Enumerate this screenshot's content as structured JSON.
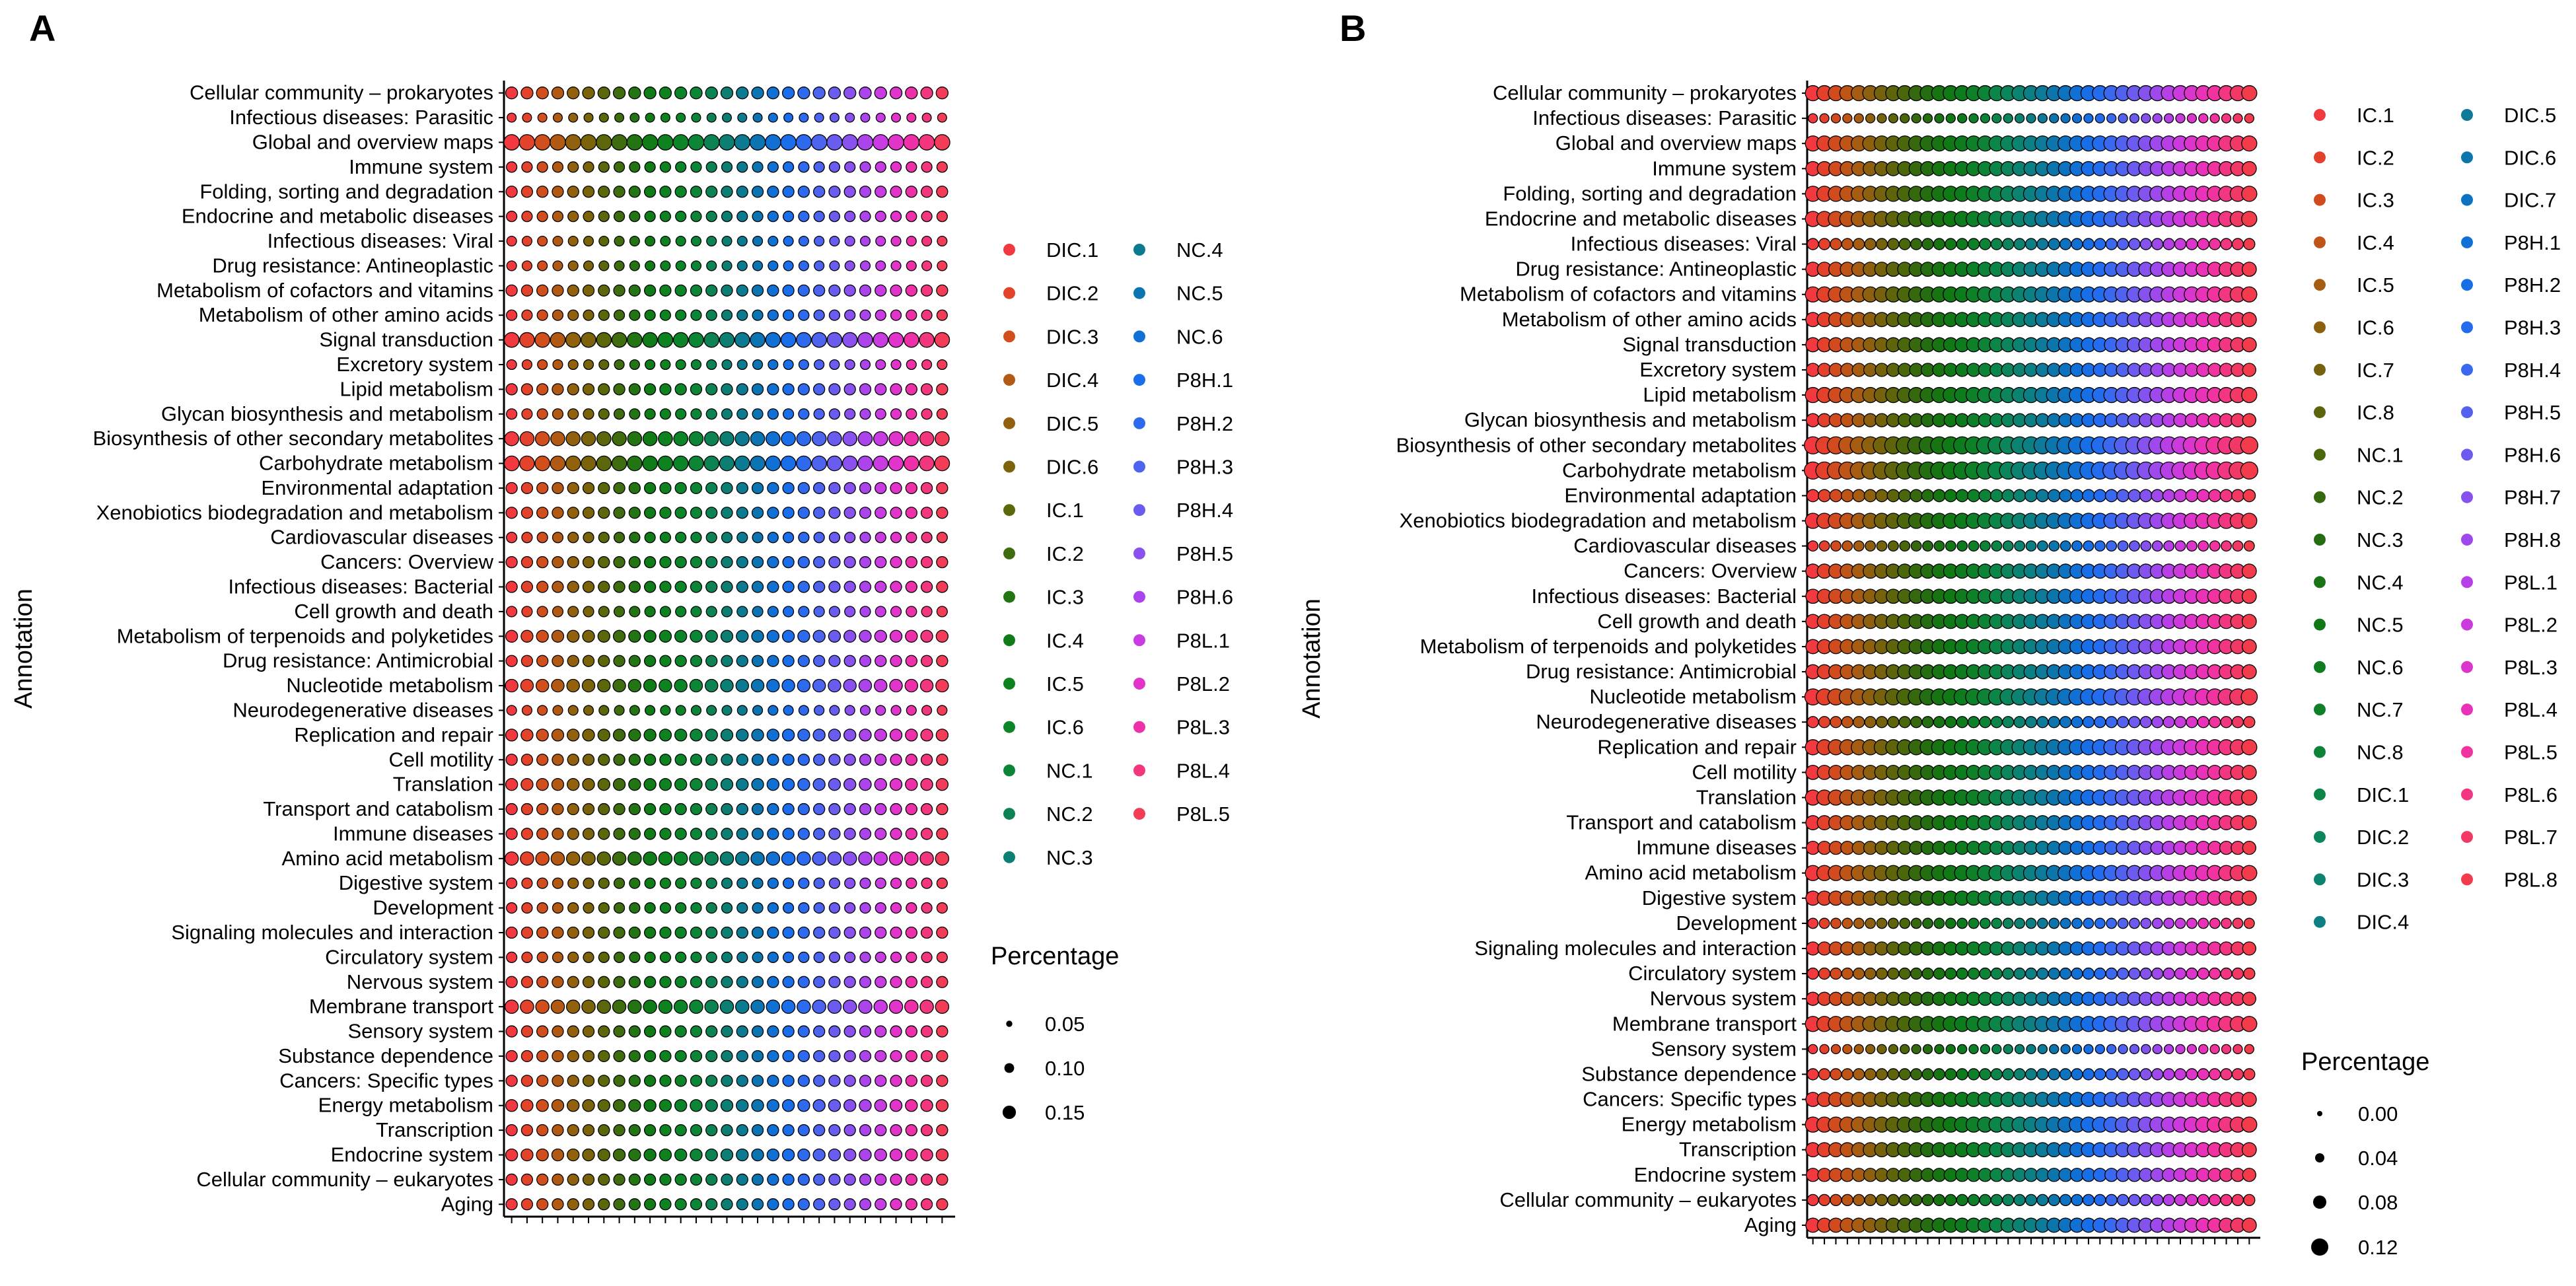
{
  "figure": {
    "panel_a_letter": "A",
    "panel_b_letter": "B"
  },
  "chart_data": [
    {
      "type": "scatter",
      "id": "panelA",
      "title": "",
      "ylabel": "Annotation",
      "xlabel": "",
      "categories": [
        "Cellular community – prokaryotes",
        "Infectious diseases: Parasitic",
        "Global and overview maps",
        "Immune system",
        "Folding, sorting and degradation",
        "Endocrine and metabolic diseases",
        "Infectious diseases: Viral",
        "Drug resistance: Antineoplastic",
        "Metabolism of cofactors and vitamins",
        "Metabolism of other amino acids",
        "Signal transduction",
        "Excretory system",
        "Lipid metabolism",
        "Glycan biosynthesis and metabolism",
        "Biosynthesis of other secondary metabolites",
        "Carbohydrate metabolism",
        "Environmental adaptation",
        "Xenobiotics biodegradation and metabolism",
        "Cardiovascular diseases",
        "Cancers: Overview",
        "Infectious diseases: Bacterial",
        "Cell growth and death",
        "Metabolism of terpenoids and polyketides",
        "Drug resistance: Antimicrobial",
        "Nucleotide metabolism",
        "Neurodegenerative diseases",
        "Replication and repair",
        "Cell motility",
        "Translation",
        "Transport and catabolism",
        "Immune diseases",
        "Amino acid metabolism",
        "Digestive system",
        "Development",
        "Signaling molecules and interaction",
        "Circulatory system",
        "Nervous system",
        "Membrane transport",
        "Sensory system",
        "Substance dependence",
        "Cancers: Specific types",
        "Energy metabolism",
        "Transcription",
        "Endocrine system",
        "Cellular community – eukaryotes",
        "Aging"
      ],
      "samples": [
        "DIC.1",
        "DIC.2",
        "DIC.3",
        "DIC.4",
        "DIC.5",
        "DIC.6",
        "IC.1",
        "IC.2",
        "IC.3",
        "IC.4",
        "IC.5",
        "IC.6",
        "NC.1",
        "NC.2",
        "NC.3",
        "NC.4",
        "NC.5",
        "NC.6",
        "P8H.1",
        "P8H.2",
        "P8H.3",
        "P8H.4",
        "P8H.5",
        "P8H.6",
        "P8L.1",
        "P8L.2",
        "P8L.3",
        "P8L.4",
        "P8L.5"
      ],
      "sample_colors": [
        "#F2393F",
        "#E2432A",
        "#D04F1C",
        "#B25A14",
        "#92610E",
        "#7A630A",
        "#5C660A",
        "#3E6C0E",
        "#237412",
        "#0F7C18",
        "#0D821E",
        "#0C8528",
        "#0C8536",
        "#0D8253",
        "#0C7F72",
        "#0C7A90",
        "#0C74B0",
        "#1170D4",
        "#1A6EEA",
        "#2E6AEE",
        "#4C64EE",
        "#6A5CEE",
        "#8A51EE",
        "#AB44EA",
        "#C83CE2",
        "#E034CA",
        "#EE31A8",
        "#F2377E",
        "#F23C58"
      ],
      "values_row_profile": [
        0.13,
        0.09,
        0.18,
        0.11,
        0.12,
        0.11,
        0.1,
        0.1,
        0.12,
        0.11,
        0.17,
        0.1,
        0.12,
        0.11,
        0.16,
        0.17,
        0.12,
        0.12,
        0.11,
        0.12,
        0.12,
        0.11,
        0.13,
        0.12,
        0.14,
        0.1,
        0.13,
        0.12,
        0.13,
        0.12,
        0.12,
        0.15,
        0.11,
        0.11,
        0.12,
        0.11,
        0.12,
        0.15,
        0.12,
        0.12,
        0.12,
        0.13,
        0.12,
        0.13,
        0.12,
        0.12
      ],
      "legend": {
        "title": "Percentage",
        "size_values": [
          0.05,
          0.1,
          0.15
        ],
        "size_labels": [
          "0.05",
          "0.10",
          "0.15"
        ],
        "placement": "right"
      },
      "colors": {
        "point_outline": "#000000",
        "axis": "#000000"
      }
    },
    {
      "type": "scatter",
      "id": "panelB",
      "title": "",
      "ylabel": "Annotation",
      "xlabel": "",
      "categories": [
        "Cellular community – prokaryotes",
        "Infectious diseases: Parasitic",
        "Global and overview maps",
        "Immune system",
        "Folding, sorting and degradation",
        "Endocrine and metabolic diseases",
        "Infectious diseases: Viral",
        "Drug resistance: Antineoplastic",
        "Metabolism of cofactors and vitamins",
        "Metabolism of other amino acids",
        "Signal transduction",
        "Excretory system",
        "Lipid metabolism",
        "Glycan biosynthesis and metabolism",
        "Biosynthesis of other secondary metabolites",
        "Carbohydrate metabolism",
        "Environmental adaptation",
        "Xenobiotics biodegradation and metabolism",
        "Cardiovascular diseases",
        "Cancers: Overview",
        "Infectious diseases: Bacterial",
        "Cell growth and death",
        "Metabolism of terpenoids and polyketides",
        "Drug resistance: Antimicrobial",
        "Nucleotide metabolism",
        "Neurodegenerative diseases",
        "Replication and repair",
        "Cell motility",
        "Translation",
        "Transport and catabolism",
        "Immune diseases",
        "Amino acid metabolism",
        "Digestive system",
        "Development",
        "Signaling molecules and interaction",
        "Circulatory system",
        "Nervous system",
        "Membrane transport",
        "Sensory system",
        "Substance dependence",
        "Cancers: Specific types",
        "Energy metabolism",
        "Transcription",
        "Endocrine system",
        "Cellular community – eukaryotes",
        "Aging"
      ],
      "samples": [
        "IC.1",
        "IC.2",
        "IC.3",
        "IC.4",
        "IC.5",
        "IC.6",
        "IC.7",
        "IC.8",
        "NC.1",
        "NC.2",
        "NC.3",
        "NC.4",
        "NC.5",
        "NC.6",
        "NC.7",
        "NC.8",
        "DIC.1",
        "DIC.2",
        "DIC.3",
        "DIC.4",
        "DIC.5",
        "DIC.6",
        "DIC.7",
        "P8H.1",
        "P8H.2",
        "P8H.3",
        "P8H.4",
        "P8H.5",
        "P8H.6",
        "P8H.7",
        "P8H.8",
        "P8L.1",
        "P8L.2",
        "P8L.3",
        "P8L.4",
        "P8L.5",
        "P8L.6",
        "P8L.7",
        "P8L.8"
      ],
      "sample_colors": [
        "#F2393F",
        "#E4412C",
        "#D24B1E",
        "#BE5416",
        "#A65C12",
        "#8C600E",
        "#74620C",
        "#5E640B",
        "#4A670C",
        "#36690E",
        "#246D11",
        "#187313",
        "#117816",
        "#0E7C1E",
        "#0D8028",
        "#0C8336",
        "#0C8548",
        "#0C845C",
        "#0C8270",
        "#0C7F84",
        "#0C7A98",
        "#0C76AC",
        "#0D72C0",
        "#1170D4",
        "#186EE4",
        "#246CEE",
        "#3A68EE",
        "#5262EE",
        "#6C5BEE",
        "#8552EE",
        "#9E49EC",
        "#B640E6",
        "#CA3ADC",
        "#DC35CC",
        "#EA32B8",
        "#F0339E",
        "#F23682",
        "#F23966",
        "#F23C4C"
      ],
      "values_row_profile": [
        0.1,
        0.04,
        0.1,
        0.09,
        0.1,
        0.1,
        0.06,
        0.09,
        0.1,
        0.09,
        0.09,
        0.08,
        0.1,
        0.08,
        0.12,
        0.12,
        0.07,
        0.1,
        0.05,
        0.09,
        0.09,
        0.09,
        0.09,
        0.09,
        0.11,
        0.06,
        0.1,
        0.09,
        0.1,
        0.09,
        0.08,
        0.1,
        0.09,
        0.05,
        0.08,
        0.06,
        0.08,
        0.1,
        0.04,
        0.06,
        0.09,
        0.1,
        0.09,
        0.08,
        0.06,
        0.09
      ],
      "legend": {
        "title": "Percentage",
        "size_values": [
          0.0,
          0.04,
          0.08,
          0.12
        ],
        "size_labels": [
          "0.00",
          "0.04",
          "0.08",
          "0.12"
        ],
        "placement": "right"
      },
      "colors": {
        "point_outline": "#000000",
        "axis": "#000000"
      }
    }
  ]
}
